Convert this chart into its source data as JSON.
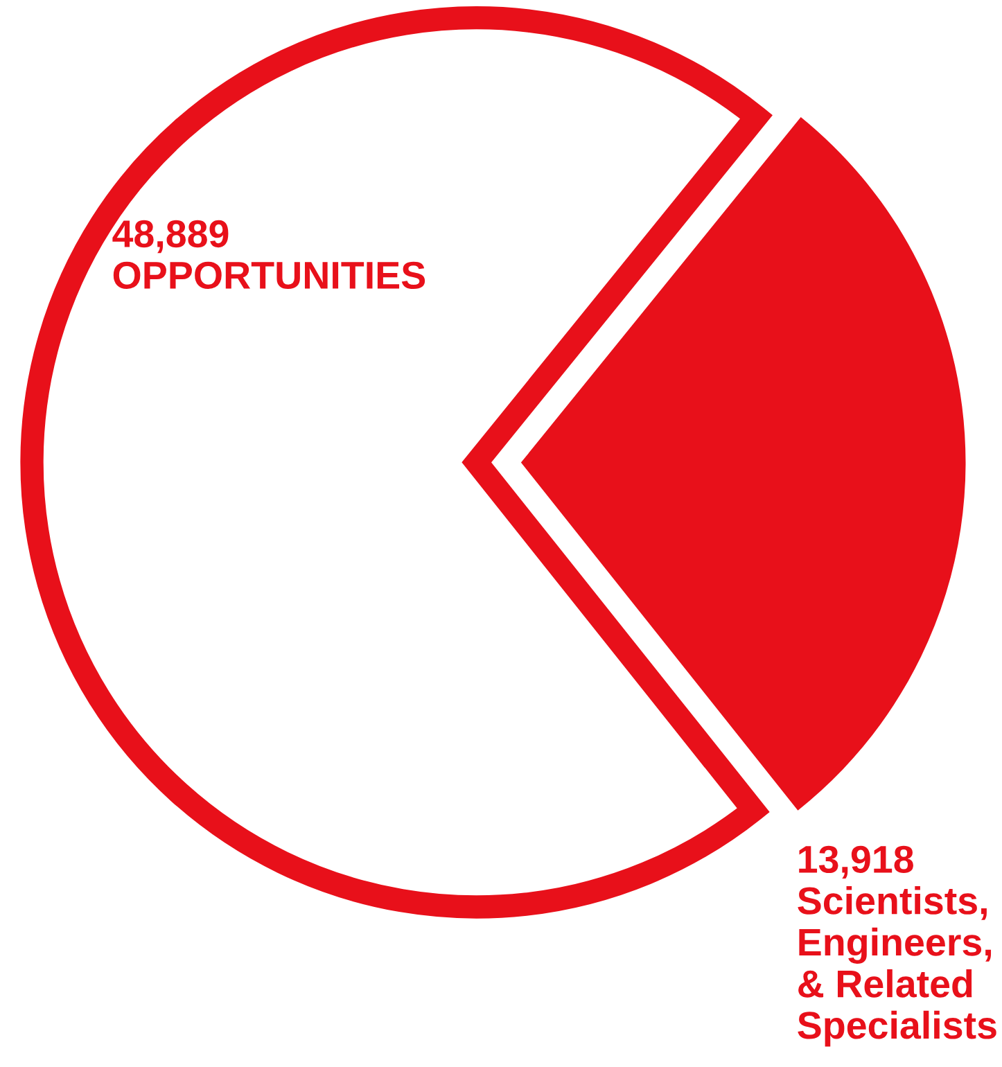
{
  "chart_data": {
    "type": "pie",
    "categories": [
      null,
      "Scientists,\nEngineers,\n& Related\nSpecialists"
    ],
    "values": [
      34971,
      13918
    ],
    "value_labels": [
      null,
      "13,918"
    ],
    "colors": [
      "#ffffff",
      "#e8101a"
    ],
    "annotations": [
      "48,889\nOPPORTUNITIES"
    ]
  }
}
